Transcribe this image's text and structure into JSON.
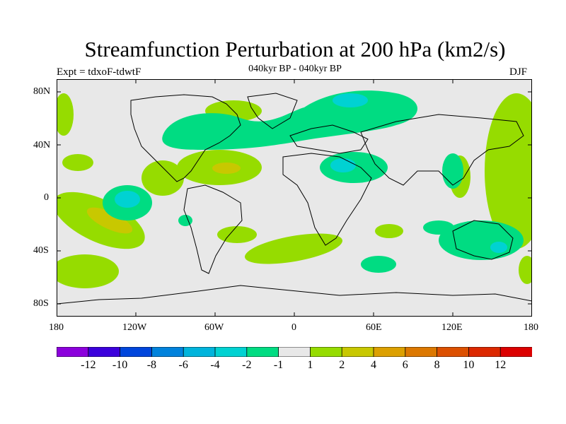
{
  "title": "Streamfunction Perturbation at 200 hPa (km2/s)",
  "experiment": "Expt = tdxoF-tdwtF",
  "period": "040kyr BP - 040kyr BP",
  "season": "DJF",
  "map": {
    "lat_labels": [
      "80N",
      "40N",
      "0",
      "40S",
      "80S"
    ],
    "lon_labels": [
      "180",
      "120W",
      "60W",
      "0",
      "60E",
      "120E",
      "180"
    ]
  },
  "colors": {
    "ocean": "#e8e8e8",
    "neg1": "#00dc82",
    "neg2": "#00d2d2",
    "pos1": "#96dc00",
    "pos2": "#c8c800"
  },
  "colorbar": {
    "colors": [
      "#8c00dc",
      "#3c00dc",
      "#0046dc",
      "#0082dc",
      "#00b4dc",
      "#00d2d2",
      "#00dc82",
      "#e8e8e8",
      "#96dc00",
      "#c8c800",
      "#dca000",
      "#dc7800",
      "#dc5000",
      "#dc2800",
      "#dc0000"
    ],
    "labels": [
      "-12",
      "-10",
      "-8",
      "-6",
      "-4",
      "-2",
      "-1",
      "1",
      "2",
      "4",
      "6",
      "8",
      "10",
      "12"
    ]
  }
}
